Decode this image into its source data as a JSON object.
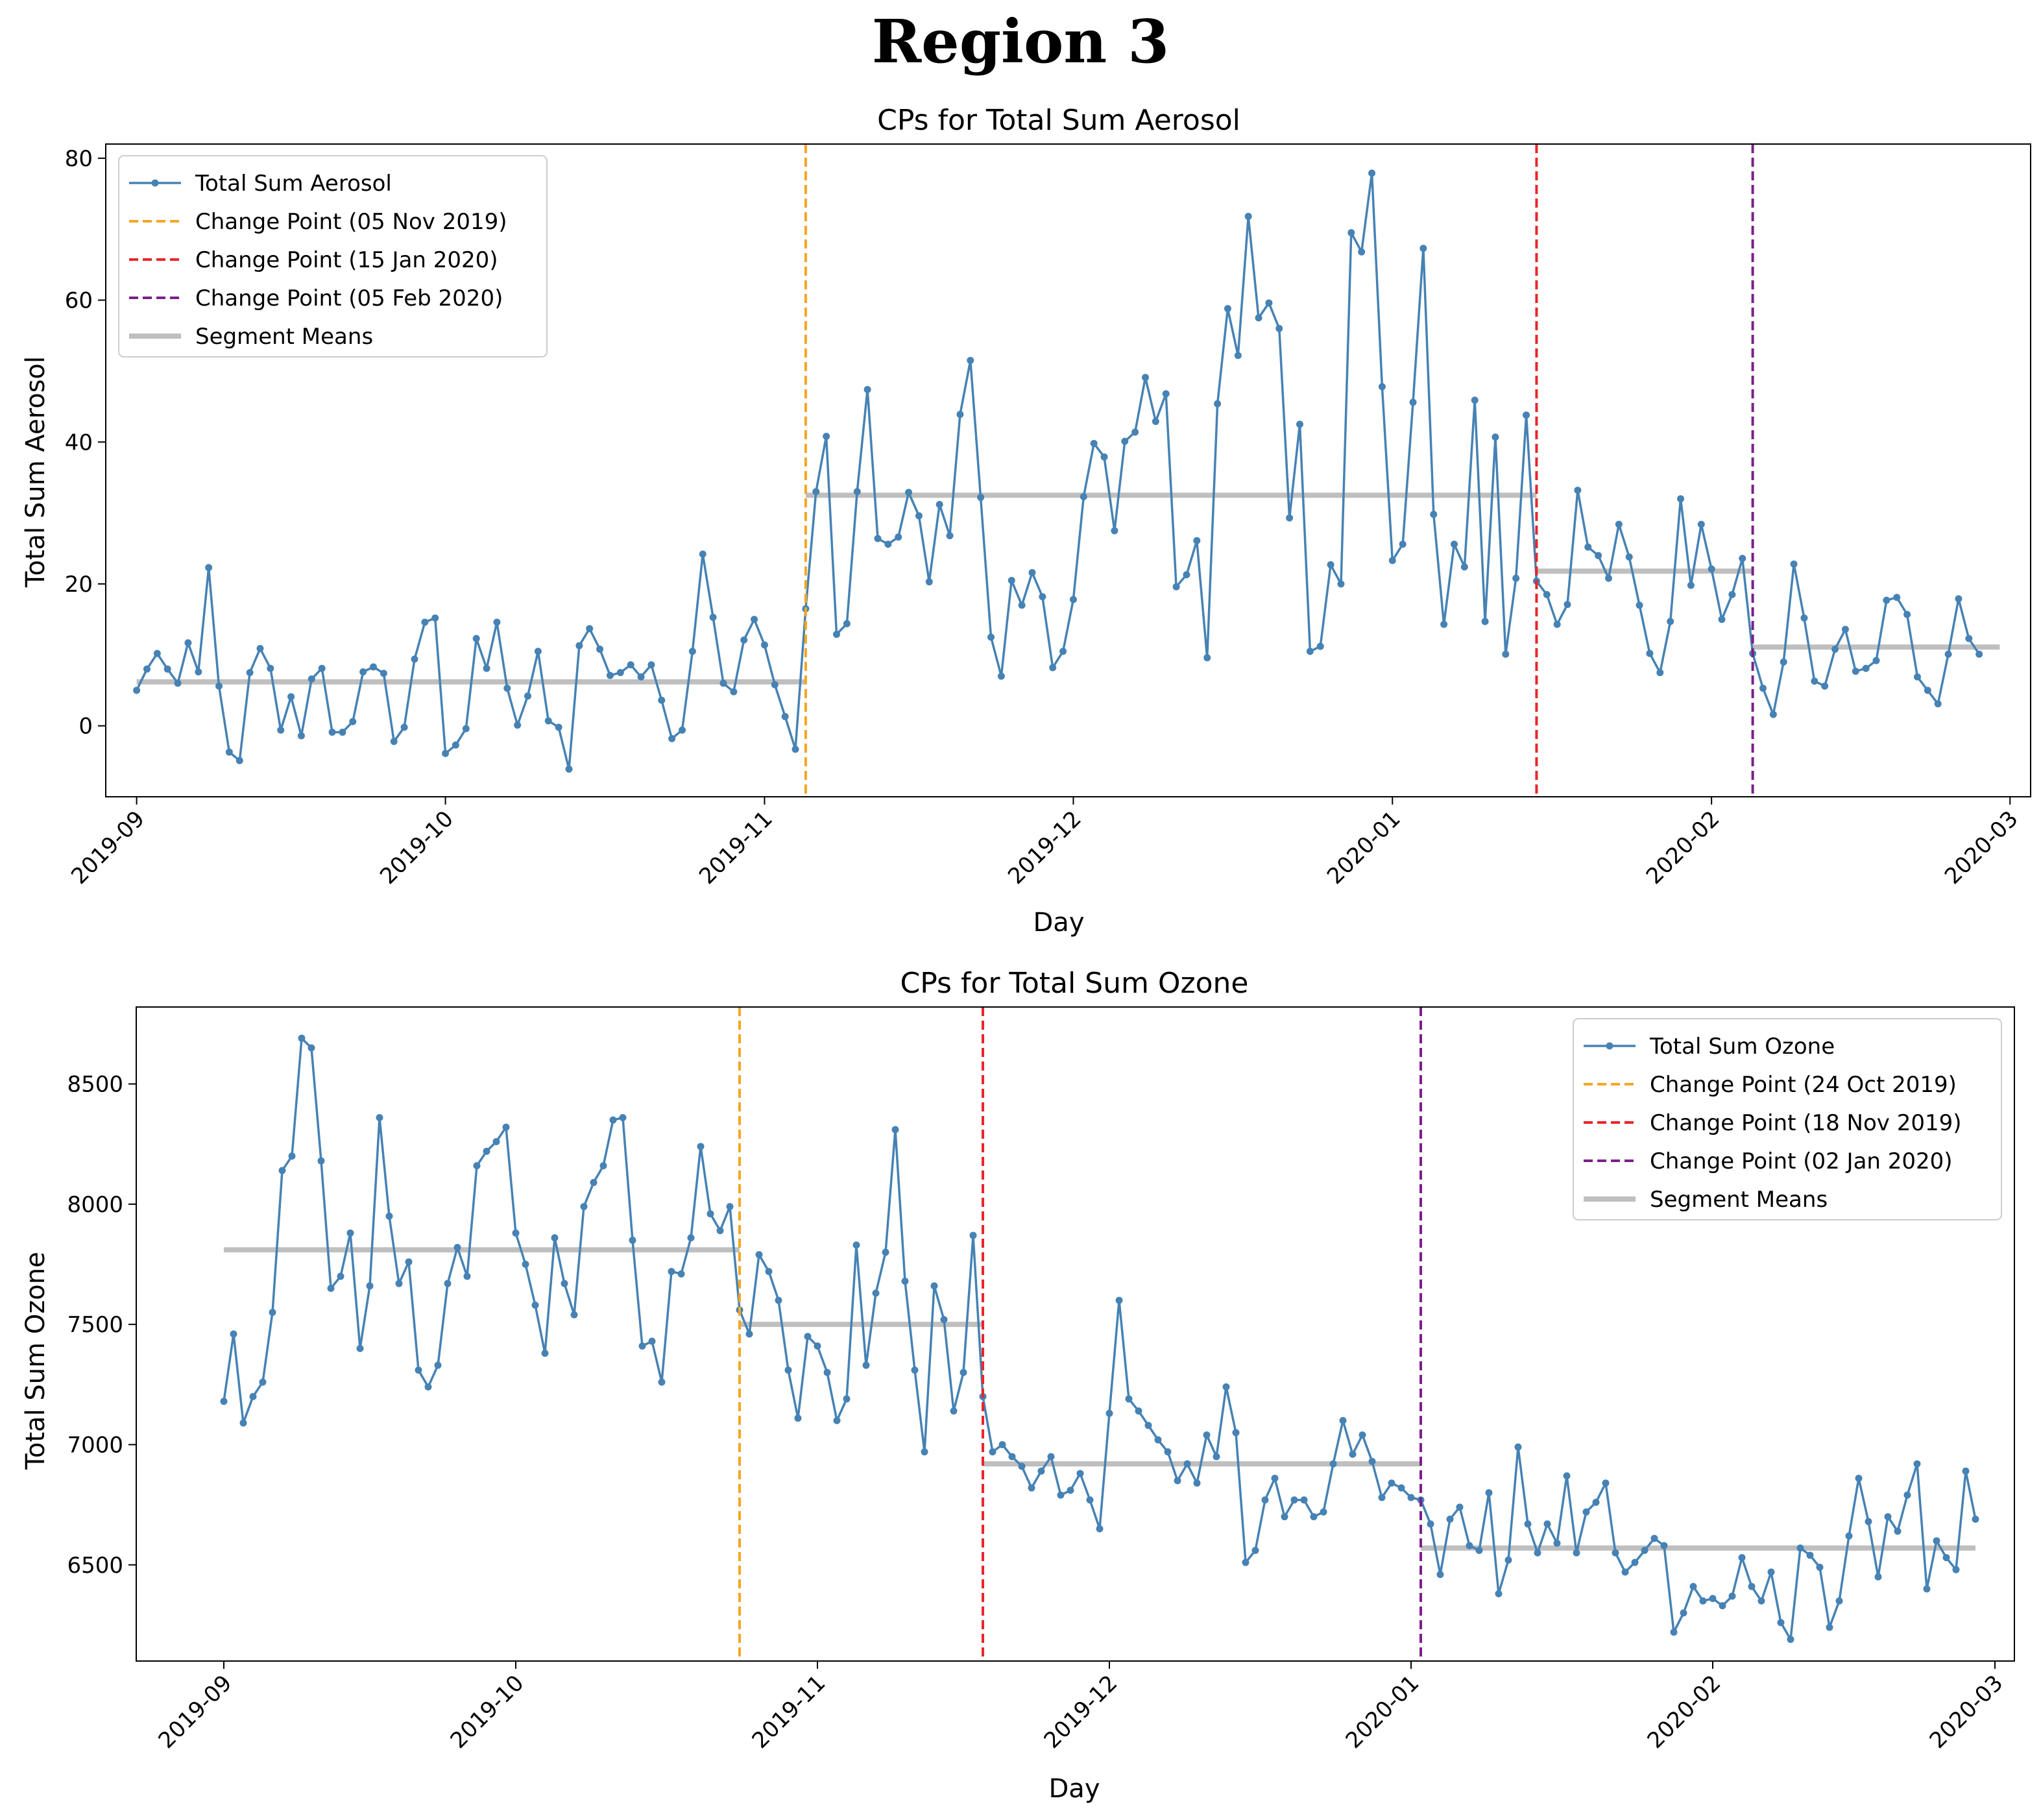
{
  "page_title": "Region 3",
  "colors": {
    "series": "#4682b4",
    "cp1": "#f5a623",
    "cp2": "#e8262a",
    "cp3": "#7b1f8a",
    "means": "#bfbfbf"
  },
  "chart_data": [
    {
      "type": "line",
      "title": "CPs for Total Sum Aerosol",
      "xlabel": "Day",
      "ylabel": "Total Sum Aerosol",
      "x_start": "2019-09-01",
      "xlim_days": [
        -3,
        184
      ],
      "ylim": [
        -10,
        82
      ],
      "yticks": [
        0,
        20,
        40,
        60,
        80
      ],
      "xticks": [
        {
          "label": "2019-09",
          "day": 0
        },
        {
          "label": "2019-10",
          "day": 30
        },
        {
          "label": "2019-11",
          "day": 61
        },
        {
          "label": "2019-12",
          "day": 91
        },
        {
          "label": "2020-01",
          "day": 122
        },
        {
          "label": "2020-02",
          "day": 153
        },
        {
          "label": "2020-03",
          "day": 182
        }
      ],
      "legend_position": "top-left",
      "series": {
        "name": "Total Sum Aerosol",
        "values": [
          5.0,
          8.0,
          10.2,
          8.0,
          6.0,
          11.7,
          7.6,
          22.3,
          5.6,
          -3.7,
          -4.9,
          7.5,
          10.9,
          8.1,
          -0.6,
          4.1,
          -1.4,
          6.6,
          8.1,
          -0.9,
          -0.9,
          0.6,
          7.6,
          8.3,
          7.4,
          -2.2,
          -0.2,
          9.4,
          14.6,
          15.2,
          -3.9,
          -2.7,
          -0.4,
          12.3,
          8.1,
          14.6,
          5.3,
          0.1,
          4.2,
          10.5,
          0.7,
          -0.2,
          -6.1,
          11.3,
          13.7,
          10.8,
          7.1,
          7.5,
          8.6,
          6.9,
          8.6,
          3.6,
          -1.8,
          -0.6,
          10.5,
          24.2,
          15.3,
          6.0,
          4.8,
          12.1,
          15.0,
          11.4,
          5.8,
          1.3,
          -3.3,
          16.5,
          33.0,
          40.8,
          12.9,
          14.4,
          33.0,
          47.4,
          26.4,
          25.6,
          26.6,
          32.9,
          29.6,
          20.3,
          31.2,
          26.8,
          43.9,
          51.5,
          32.2,
          12.5,
          7.0,
          20.5,
          17.0,
          21.6,
          18.2,
          8.2,
          10.5,
          17.8,
          32.3,
          39.8,
          37.9,
          27.5,
          40.1,
          41.4,
          49.1,
          42.9,
          46.8,
          19.6,
          21.3,
          26.1,
          9.6,
          45.4,
          58.8,
          52.2,
          71.8,
          57.5,
          59.6,
          56.0,
          29.3,
          42.5,
          10.5,
          11.2,
          22.7,
          20.0,
          69.5,
          66.8,
          77.9,
          47.8,
          23.3,
          25.6,
          45.6,
          67.3,
          29.8,
          14.3,
          25.6,
          22.4,
          45.9,
          14.7,
          40.7,
          10.1,
          20.8,
          43.8,
          20.4,
          18.5,
          14.3,
          17.1,
          33.2,
          25.2,
          24.0,
          20.8,
          28.4,
          23.8,
          17.0,
          10.2,
          7.5,
          14.7,
          32.0,
          19.8,
          28.4,
          22.1,
          15.0,
          18.5,
          23.6,
          10.2,
          5.3,
          1.6,
          9.0,
          22.8,
          15.2,
          6.3,
          5.6,
          10.8,
          13.6,
          7.7,
          8.1,
          9.2,
          17.7,
          18.1,
          15.7,
          6.9,
          5.0,
          3.1,
          10.1,
          17.9,
          12.3,
          10.1
        ]
      },
      "change_points": [
        {
          "label": "Change Point (05 Nov 2019)",
          "day": 65,
          "color_key": "cp1"
        },
        {
          "label": "Change Point (15 Jan 2020)",
          "day": 136,
          "color_key": "cp2"
        },
        {
          "label": "Change Point (05 Feb 2020)",
          "day": 157,
          "color_key": "cp3"
        }
      ],
      "segment_means": {
        "label": "Segment Means",
        "segments": [
          {
            "from_day": 0,
            "to_day": 65,
            "value": 6.2
          },
          {
            "from_day": 65,
            "to_day": 136,
            "value": 32.5
          },
          {
            "from_day": 136,
            "to_day": 157,
            "value": 21.8
          },
          {
            "from_day": 157,
            "to_day": 181,
            "value": 11.1
          }
        ]
      }
    },
    {
      "type": "line",
      "title": "CPs for Total Sum Ozone",
      "xlabel": "Day",
      "ylabel": "Total Sum Ozone",
      "x_start": "2019-09-01",
      "xlim_days": [
        -9,
        184
      ],
      "ylim": [
        6100,
        8820
      ],
      "yticks": [
        6500,
        7000,
        7500,
        8000,
        8500
      ],
      "xticks": [
        {
          "label": "2019-09",
          "day": 0
        },
        {
          "label": "2019-10",
          "day": 30
        },
        {
          "label": "2019-11",
          "day": 61
        },
        {
          "label": "2019-12",
          "day": 91
        },
        {
          "label": "2020-01",
          "day": 122
        },
        {
          "label": "2020-02",
          "day": 153
        },
        {
          "label": "2020-03",
          "day": 182
        }
      ],
      "legend_position": "top-right",
      "series": {
        "name": "Total Sum Ozone",
        "values": [
          7180,
          7460,
          7090,
          7200,
          7260,
          7550,
          8140,
          8200,
          8690,
          8650,
          8180,
          7650,
          7700,
          7880,
          7400,
          7660,
          8360,
          7950,
          7670,
          7760,
          7310,
          7240,
          7330,
          7670,
          7820,
          7700,
          8160,
          8220,
          8260,
          8320,
          7880,
          7750,
          7580,
          7380,
          7860,
          7670,
          7540,
          7990,
          8090,
          8160,
          8350,
          8360,
          7850,
          7410,
          7430,
          7260,
          7720,
          7710,
          7860,
          8240,
          7960,
          7890,
          7990,
          7560,
          7460,
          7790,
          7720,
          7600,
          7310,
          7110,
          7450,
          7410,
          7300,
          7100,
          7190,
          7830,
          7330,
          7630,
          7800,
          8310,
          7680,
          7310,
          6970,
          7660,
          7520,
          7140,
          7300,
          7870,
          7200,
          6970,
          7000,
          6950,
          6910,
          6820,
          6890,
          6950,
          6790,
          6810,
          6880,
          6770,
          6650,
          7130,
          7600,
          7190,
          7140,
          7080,
          7020,
          6970,
          6850,
          6920,
          6840,
          7040,
          6950,
          7240,
          7050,
          6510,
          6560,
          6770,
          6860,
          6700,
          6770,
          6770,
          6700,
          6720,
          6920,
          7100,
          6960,
          7040,
          6930,
          6780,
          6840,
          6820,
          6780,
          6770,
          6670,
          6460,
          6690,
          6740,
          6580,
          6560,
          6800,
          6380,
          6520,
          6990,
          6670,
          6550,
          6670,
          6590,
          6870,
          6550,
          6720,
          6760,
          6840,
          6550,
          6470,
          6510,
          6560,
          6610,
          6580,
          6220,
          6300,
          6410,
          6350,
          6360,
          6330,
          6370,
          6530,
          6410,
          6350,
          6470,
          6260,
          6190,
          6570,
          6540,
          6490,
          6240,
          6350,
          6620,
          6860,
          6680,
          6450,
          6700,
          6640,
          6790,
          6920,
          6400,
          6600,
          6530,
          6480,
          6890,
          6690
        ]
      },
      "change_points": [
        {
          "label": "Change Point (24 Oct 2019)",
          "day": 53,
          "color_key": "cp1"
        },
        {
          "label": "Change Point (18 Nov 2019)",
          "day": 78,
          "color_key": "cp2"
        },
        {
          "label": "Change Point (02 Jan 2020)",
          "day": 123,
          "color_key": "cp3"
        }
      ],
      "segment_means": {
        "label": "Segment Means",
        "segments": [
          {
            "from_day": 0,
            "to_day": 53,
            "value": 7810
          },
          {
            "from_day": 53,
            "to_day": 78,
            "value": 7500
          },
          {
            "from_day": 78,
            "to_day": 123,
            "value": 6920
          },
          {
            "from_day": 123,
            "to_day": 180,
            "value": 6570
          }
        ]
      }
    }
  ]
}
